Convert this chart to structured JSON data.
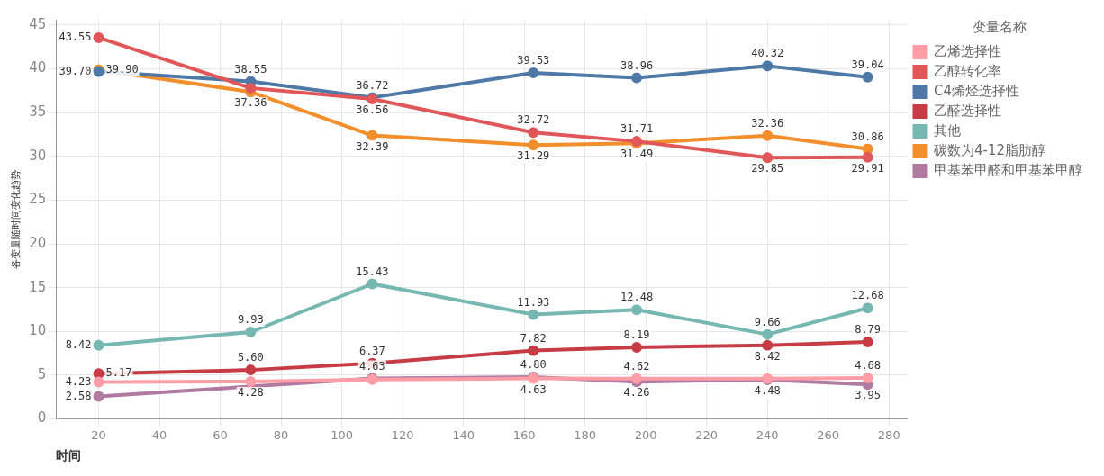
{
  "chart_data": {
    "type": "line",
    "xlabel": "时间",
    "ylabel": "各变量随时间变化趋势",
    "legend_title": "变量名称",
    "legend": "top right",
    "grid": true,
    "marker": "circle",
    "x": [
      20,
      70,
      110,
      163,
      197,
      240,
      273
    ],
    "xlim": [
      6,
      286
    ],
    "xticks": [
      20,
      40,
      60,
      80,
      100,
      120,
      140,
      160,
      180,
      200,
      220,
      240,
      260,
      280
    ],
    "ylim": [
      0,
      45.6
    ],
    "yticks": [
      0,
      5,
      10,
      15,
      20,
      25,
      30,
      35,
      40,
      45
    ],
    "series": [
      {
        "name": "乙烯选择性",
        "color": "#ff9da7",
        "values": [
          4.23,
          4.28,
          4.5,
          4.63,
          4.62,
          4.6,
          4.68
        ],
        "value_labels": [
          "4.23",
          "4.28",
          null,
          "4.63",
          "4.62",
          null,
          "4.68"
        ]
      },
      {
        "name": "乙醇转化率",
        "color": "#e15759",
        "values": [
          43.55,
          37.8,
          36.56,
          32.72,
          31.71,
          29.85,
          29.91
        ],
        "value_labels": [
          "43.55",
          null,
          "36.56",
          "32.72",
          "31.71",
          "29.85",
          "29.91"
        ]
      },
      {
        "name": "C4烯烃选择性",
        "color": "#4e79a7",
        "values": [
          39.7,
          38.55,
          36.72,
          39.53,
          38.96,
          40.32,
          39.04
        ],
        "value_labels": [
          "39.70",
          "38.55",
          "36.72",
          "39.53",
          "38.96",
          "40.32",
          "39.04"
        ]
      },
      {
        "name": "乙醛选择性",
        "color": "#c73c44",
        "values": [
          5.17,
          5.6,
          6.37,
          7.82,
          8.19,
          8.42,
          8.79
        ],
        "value_labels": [
          "5.17",
          "5.60",
          "6.37",
          "7.82",
          "8.19",
          "8.42",
          "8.79"
        ]
      },
      {
        "name": "其他",
        "color": "#76b7b2",
        "values": [
          8.42,
          9.93,
          15.43,
          11.93,
          12.48,
          9.66,
          12.68
        ],
        "value_labels": [
          "8.42",
          "9.93",
          "15.43",
          "11.93",
          "12.48",
          "9.66",
          "12.68"
        ]
      },
      {
        "name": "碳数为4-12脂肪醇",
        "color": "#f28e2b",
        "values": [
          39.9,
          37.36,
          32.39,
          31.29,
          31.49,
          32.36,
          30.86
        ],
        "value_labels": [
          "39.90",
          "37.36",
          "32.39",
          "31.29",
          "31.49",
          "32.36",
          "30.86"
        ]
      },
      {
        "name": "甲基苯甲醛和甲基苯甲醇",
        "color": "#b07aa1",
        "values": [
          2.58,
          null,
          4.63,
          4.8,
          4.26,
          4.48,
          3.95
        ],
        "value_labels": [
          "2.58",
          null,
          "4.63",
          "4.80",
          "4.26",
          "4.48",
          "3.95"
        ]
      }
    ]
  }
}
